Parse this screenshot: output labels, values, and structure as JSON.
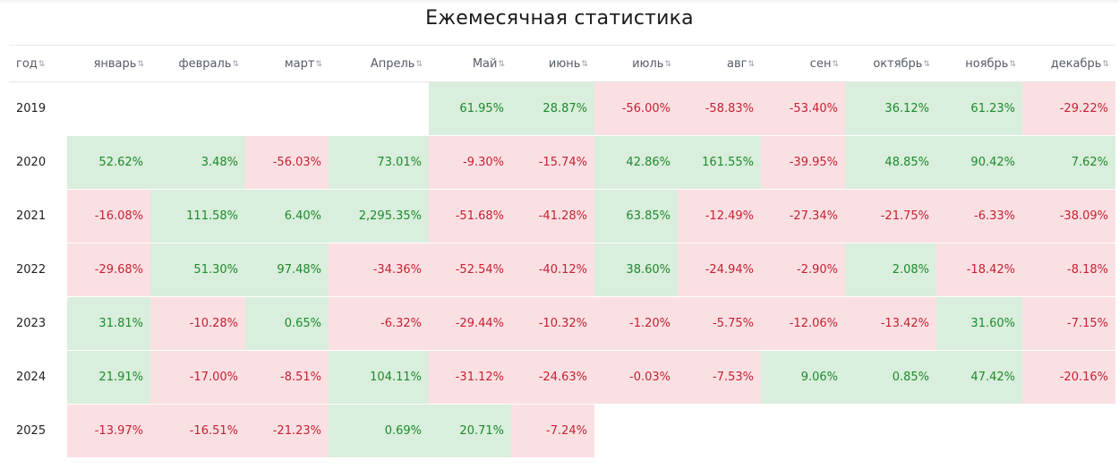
{
  "title": "Ежемесячная статистика",
  "headers": [
    "год",
    "январь",
    "февраль",
    "март",
    "Апрель",
    "Май",
    "июнь",
    "июль",
    "авг",
    "сен",
    "октябрь",
    "ноябрь",
    "декабрь"
  ],
  "sort_glyph": "⇅",
  "colors": {
    "positive_bg": "#d9eedc",
    "positive_text": "#1e8a2c",
    "negative_bg": "#fbe0e3",
    "negative_text": "#c62233"
  },
  "rows": [
    {
      "year": "2019",
      "cells": [
        {
          "v": "",
          "sign": ""
        },
        {
          "v": "",
          "sign": ""
        },
        {
          "v": "",
          "sign": ""
        },
        {
          "v": "",
          "sign": ""
        },
        {
          "v": "61.95%",
          "sign": "pos"
        },
        {
          "v": "28.87%",
          "sign": "pos"
        },
        {
          "v": "-56.00%",
          "sign": "neg"
        },
        {
          "v": "-58.83%",
          "sign": "neg"
        },
        {
          "v": "-53.40%",
          "sign": "neg"
        },
        {
          "v": "36.12%",
          "sign": "pos"
        },
        {
          "v": "61.23%",
          "sign": "pos"
        },
        {
          "v": "-29.22%",
          "sign": "neg"
        }
      ]
    },
    {
      "year": "2020",
      "cells": [
        {
          "v": "52.62%",
          "sign": "pos"
        },
        {
          "v": "3.48%",
          "sign": "pos"
        },
        {
          "v": "-56.03%",
          "sign": "neg"
        },
        {
          "v": "73.01%",
          "sign": "pos"
        },
        {
          "v": "-9.30%",
          "sign": "neg"
        },
        {
          "v": "-15.74%",
          "sign": "neg"
        },
        {
          "v": "42.86%",
          "sign": "pos"
        },
        {
          "v": "161.55%",
          "sign": "pos"
        },
        {
          "v": "-39.95%",
          "sign": "neg"
        },
        {
          "v": "48.85%",
          "sign": "pos"
        },
        {
          "v": "90.42%",
          "sign": "pos"
        },
        {
          "v": "7.62%",
          "sign": "pos"
        }
      ]
    },
    {
      "year": "2021",
      "cells": [
        {
          "v": "-16.08%",
          "sign": "neg"
        },
        {
          "v": "111.58%",
          "sign": "pos"
        },
        {
          "v": "6.40%",
          "sign": "pos"
        },
        {
          "v": "2,295.35%",
          "sign": "pos"
        },
        {
          "v": "-51.68%",
          "sign": "neg"
        },
        {
          "v": "-41.28%",
          "sign": "neg"
        },
        {
          "v": "63.85%",
          "sign": "pos"
        },
        {
          "v": "-12.49%",
          "sign": "neg"
        },
        {
          "v": "-27.34%",
          "sign": "neg"
        },
        {
          "v": "-21.75%",
          "sign": "neg"
        },
        {
          "v": "-6.33%",
          "sign": "neg"
        },
        {
          "v": "-38.09%",
          "sign": "neg"
        }
      ]
    },
    {
      "year": "2022",
      "cells": [
        {
          "v": "-29.68%",
          "sign": "neg"
        },
        {
          "v": "51.30%",
          "sign": "pos"
        },
        {
          "v": "97.48%",
          "sign": "pos"
        },
        {
          "v": "-34.36%",
          "sign": "neg"
        },
        {
          "v": "-52.54%",
          "sign": "neg"
        },
        {
          "v": "-40.12%",
          "sign": "neg"
        },
        {
          "v": "38.60%",
          "sign": "pos"
        },
        {
          "v": "-24.94%",
          "sign": "neg"
        },
        {
          "v": "-2.90%",
          "sign": "neg"
        },
        {
          "v": "2.08%",
          "sign": "pos"
        },
        {
          "v": "-18.42%",
          "sign": "neg"
        },
        {
          "v": "-8.18%",
          "sign": "neg"
        }
      ]
    },
    {
      "year": "2023",
      "cells": [
        {
          "v": "31.81%",
          "sign": "pos"
        },
        {
          "v": "-10.28%",
          "sign": "neg"
        },
        {
          "v": "0.65%",
          "sign": "pos"
        },
        {
          "v": "-6.32%",
          "sign": "neg"
        },
        {
          "v": "-29.44%",
          "sign": "neg"
        },
        {
          "v": "-10.32%",
          "sign": "neg"
        },
        {
          "v": "-1.20%",
          "sign": "neg"
        },
        {
          "v": "-5.75%",
          "sign": "neg"
        },
        {
          "v": "-12.06%",
          "sign": "neg"
        },
        {
          "v": "-13.42%",
          "sign": "neg"
        },
        {
          "v": "31.60%",
          "sign": "pos"
        },
        {
          "v": "-7.15%",
          "sign": "neg"
        }
      ]
    },
    {
      "year": "2024",
      "cells": [
        {
          "v": "21.91%",
          "sign": "pos"
        },
        {
          "v": "-17.00%",
          "sign": "neg"
        },
        {
          "v": "-8.51%",
          "sign": "neg"
        },
        {
          "v": "104.11%",
          "sign": "pos"
        },
        {
          "v": "-31.12%",
          "sign": "neg"
        },
        {
          "v": "-24.63%",
          "sign": "neg"
        },
        {
          "v": "-0.03%",
          "sign": "neg"
        },
        {
          "v": "-7.53%",
          "sign": "neg"
        },
        {
          "v": "9.06%",
          "sign": "pos"
        },
        {
          "v": "0.85%",
          "sign": "pos"
        },
        {
          "v": "47.42%",
          "sign": "pos"
        },
        {
          "v": "-20.16%",
          "sign": "neg"
        }
      ]
    },
    {
      "year": "2025",
      "cells": [
        {
          "v": "-13.97%",
          "sign": "neg"
        },
        {
          "v": "-16.51%",
          "sign": "neg"
        },
        {
          "v": "-21.23%",
          "sign": "neg"
        },
        {
          "v": "0.69%",
          "sign": "pos"
        },
        {
          "v": "20.71%",
          "sign": "pos"
        },
        {
          "v": "-7.24%",
          "sign": "neg"
        },
        {
          "v": "",
          "sign": ""
        },
        {
          "v": "",
          "sign": ""
        },
        {
          "v": "",
          "sign": ""
        },
        {
          "v": "",
          "sign": ""
        },
        {
          "v": "",
          "sign": ""
        },
        {
          "v": "",
          "sign": ""
        }
      ]
    }
  ]
}
